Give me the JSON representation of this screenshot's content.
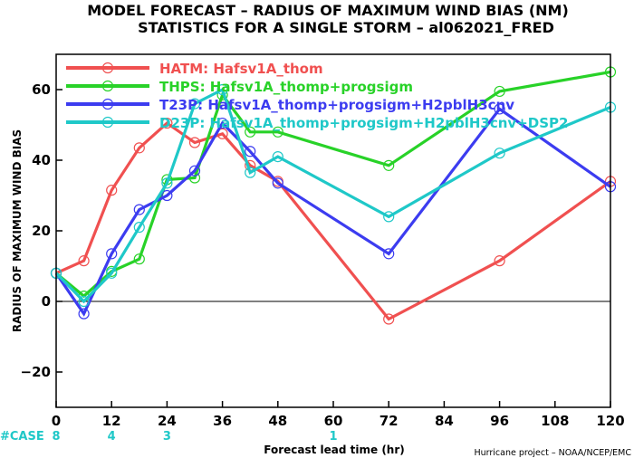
{
  "chart_data": {
    "type": "line",
    "title": "MODEL FORECAST – RADIUS OF MAXIMUM WIND BIAS (NM)",
    "subtitle": "STATISTICS FOR A SINGLE STORM – al062021_FRED",
    "xlabel": "Forecast lead time (hr)",
    "ylabel": "RADIUS OF MAXIMUM WIND BIAS",
    "xlim": [
      0,
      120
    ],
    "ylim": [
      -30,
      70
    ],
    "xticks": [
      0,
      12,
      24,
      36,
      48,
      60,
      72,
      84,
      96,
      108,
      120
    ],
    "yticks": [
      -20,
      0,
      20,
      40,
      60
    ],
    "zero_line": true,
    "legend_placement": "top-left",
    "series": [
      {
        "name": "HATM:  Hafsv1A_thom",
        "color": "#f05050",
        "x": [
          0,
          6,
          12,
          18,
          24,
          30,
          36,
          42,
          48,
          72,
          96,
          120
        ],
        "y": [
          8,
          11.5,
          31.5,
          43.5,
          50.5,
          45,
          47.5,
          38.5,
          34,
          -5,
          11.5,
          34
        ]
      },
      {
        "name": "THPS:  Hafsv1A_thomp+progsigm",
        "color": "#28d228",
        "x": [
          0,
          6,
          12,
          18,
          24,
          30,
          36,
          42,
          48,
          72,
          96,
          120
        ],
        "y": [
          8,
          1.5,
          8.5,
          12,
          34.5,
          35,
          58.5,
          48,
          48,
          38.5,
          59.5,
          65
        ]
      },
      {
        "name": "T23P:  Hafsv1A_thomp+progsigm+H2pblH3cnv",
        "color": "#3c3cf0",
        "x": [
          0,
          6,
          12,
          18,
          24,
          30,
          36,
          42,
          48,
          72,
          96,
          120
        ],
        "y": [
          8,
          -3.5,
          13.5,
          26,
          30,
          37,
          50.5,
          42.5,
          33.5,
          13.5,
          54.5,
          32.5
        ]
      },
      {
        "name": "D23P:  Hafsv1A_thomp+progsigm+H2pblH3cnv+DSP2",
        "color": "#1fc8c8",
        "x": [
          0,
          6,
          12,
          18,
          24,
          30,
          36,
          42,
          48,
          72,
          96,
          120
        ],
        "y": [
          8,
          0,
          8,
          21,
          33.5,
          56,
          60,
          36.5,
          41,
          24,
          42,
          55
        ]
      }
    ],
    "cases": {
      "label": "#CASE",
      "x": [
        0,
        12,
        24,
        60
      ],
      "values": [
        "8",
        "4",
        "3",
        "1"
      ]
    },
    "credit": "Hurricane project – NOAA/NCEP/EMC"
  }
}
